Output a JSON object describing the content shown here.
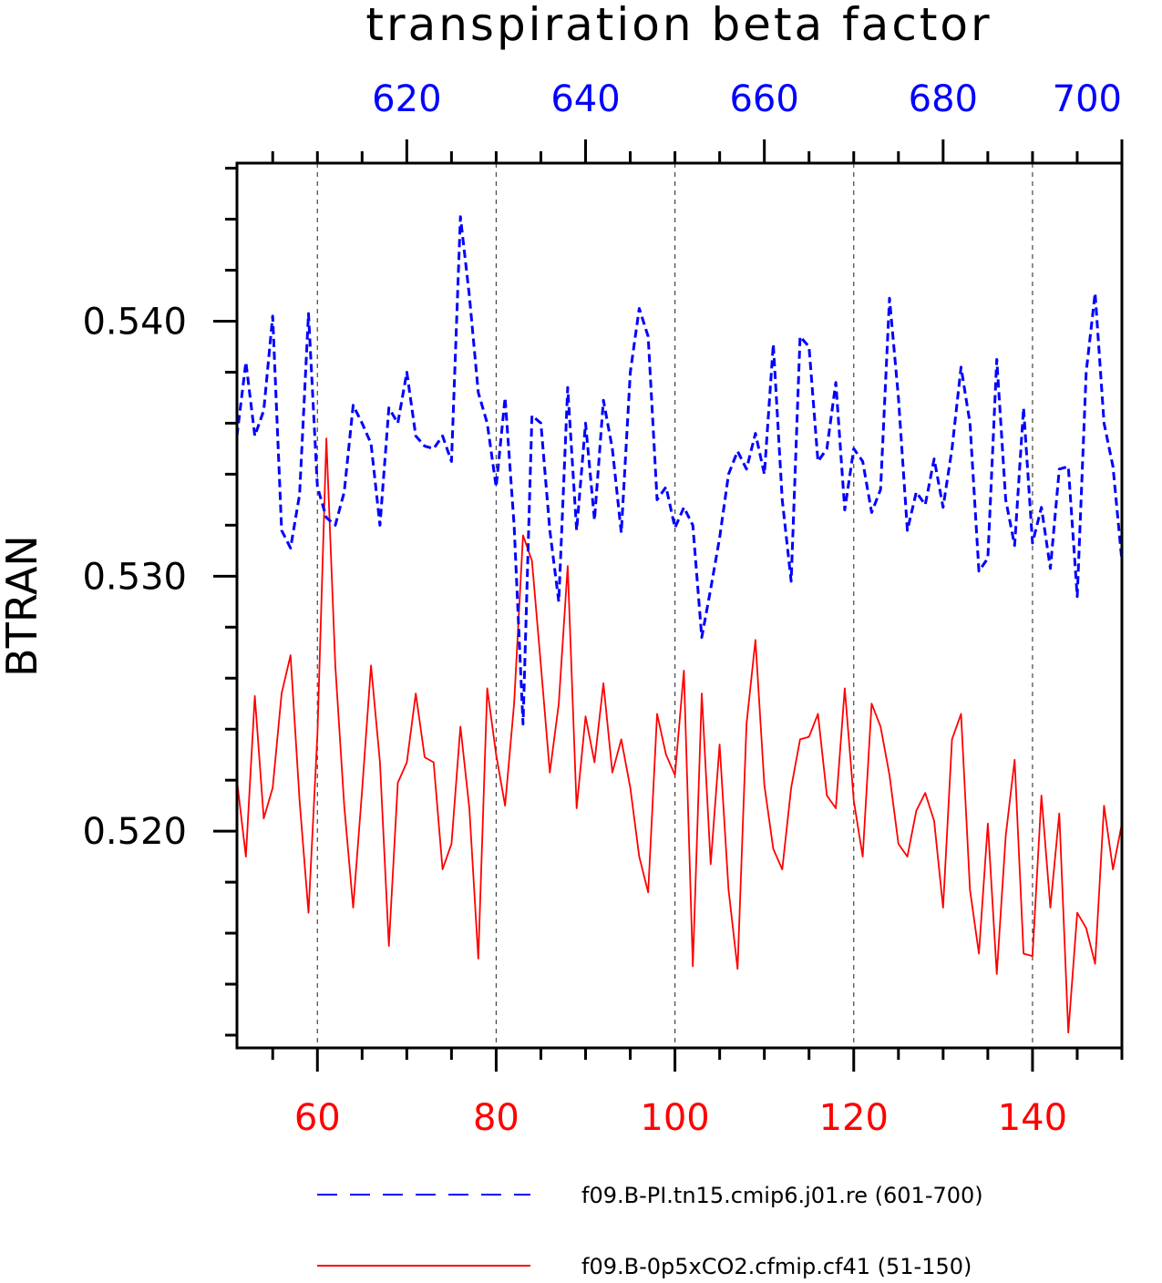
{
  "chart_data": {
    "type": "line",
    "title": "transpiration beta factor",
    "ylabel": "BTRAN",
    "ylim": [
      0.5115,
      0.5462
    ],
    "yticks": [
      0.52,
      0.53,
      0.54
    ],
    "ytick_labels": [
      "0.520",
      "0.530",
      "0.540"
    ],
    "y_minor_step": 0.002,
    "grid": "vertical dashed lines at major bottom ticks",
    "bottom_axis": {
      "color": "#ff0000",
      "range": [
        51,
        150
      ],
      "ticks": [
        60,
        80,
        100,
        120,
        140
      ],
      "tick_labels": [
        "60",
        "80",
        "100",
        "120",
        "140"
      ],
      "minor_step": 5
    },
    "top_axis": {
      "color": "#0000ff",
      "range": [
        601,
        700
      ],
      "ticks": [
        620,
        640,
        660,
        680,
        700
      ],
      "tick_labels": [
        "620",
        "640",
        "660",
        "680",
        "700"
      ],
      "minor_step": 5
    },
    "legend_position": "bottom",
    "series": [
      {
        "name": "f09.B-PI.tn15.cmip6.j01.re (601-700)",
        "axis": "top",
        "color": "#0000ff",
        "dash": "dashed",
        "x_start": 601,
        "values": [
          0.5355,
          0.5384,
          0.5355,
          0.5365,
          0.5402,
          0.5318,
          0.5311,
          0.5332,
          0.5403,
          0.5335,
          0.5323,
          0.532,
          0.5333,
          0.5367,
          0.536,
          0.5352,
          0.532,
          0.5366,
          0.536,
          0.538,
          0.5355,
          0.5351,
          0.535,
          0.5355,
          0.5345,
          0.5441,
          0.541,
          0.5372,
          0.536,
          0.5335,
          0.537,
          0.532,
          0.5242,
          0.5363,
          0.536,
          0.5318,
          0.529,
          0.5374,
          0.5318,
          0.536,
          0.5322,
          0.5369,
          0.535,
          0.5317,
          0.538,
          0.5405,
          0.5394,
          0.533,
          0.5335,
          0.5319,
          0.5327,
          0.532,
          0.5276,
          0.5295,
          0.5315,
          0.534,
          0.5349,
          0.5342,
          0.5356,
          0.534,
          0.5391,
          0.533,
          0.5298,
          0.5394,
          0.539,
          0.5345,
          0.535,
          0.5376,
          0.5326,
          0.535,
          0.5345,
          0.5325,
          0.5334,
          0.5409,
          0.537,
          0.5318,
          0.5333,
          0.5328,
          0.5346,
          0.5327,
          0.535,
          0.5382,
          0.536,
          0.5302,
          0.5307,
          0.5385,
          0.533,
          0.5312,
          0.5366,
          0.5313,
          0.5327,
          0.5303,
          0.5342,
          0.5343,
          0.5292,
          0.538,
          0.5411,
          0.536,
          0.5343,
          0.5306
        ]
      },
      {
        "name": "f09.B-0p5xCO2.cfmip.cf41 (51-150)",
        "axis": "bottom",
        "color": "#ff0000",
        "dash": "solid",
        "x_start": 51,
        "values": [
          0.522,
          0.519,
          0.5253,
          0.5205,
          0.5217,
          0.5254,
          0.5269,
          0.5212,
          0.5168,
          0.5238,
          0.5354,
          0.5265,
          0.521,
          0.517,
          0.5216,
          0.5265,
          0.5227,
          0.5155,
          0.5219,
          0.5227,
          0.5254,
          0.5229,
          0.5227,
          0.5185,
          0.5195,
          0.5241,
          0.5209,
          0.515,
          0.5256,
          0.523,
          0.521,
          0.525,
          0.5316,
          0.5306,
          0.5265,
          0.5223,
          0.525,
          0.5304,
          0.5209,
          0.5245,
          0.5227,
          0.5258,
          0.5223,
          0.5236,
          0.5217,
          0.519,
          0.5176,
          0.5246,
          0.523,
          0.5222,
          0.5263,
          0.5147,
          0.5254,
          0.5187,
          0.5234,
          0.5177,
          0.5146,
          0.5242,
          0.5275,
          0.5218,
          0.5193,
          0.5185,
          0.5217,
          0.5236,
          0.5237,
          0.5246,
          0.5214,
          0.5209,
          0.5256,
          0.5212,
          0.519,
          0.525,
          0.5241,
          0.5222,
          0.5195,
          0.519,
          0.5208,
          0.5215,
          0.5204,
          0.517,
          0.5236,
          0.5246,
          0.5177,
          0.5152,
          0.5203,
          0.5144,
          0.5198,
          0.5228,
          0.5152,
          0.5151,
          0.5214,
          0.517,
          0.5207,
          0.5121,
          0.5168,
          0.5162,
          0.5148,
          0.521,
          0.5185,
          0.5203
        ]
      }
    ]
  }
}
